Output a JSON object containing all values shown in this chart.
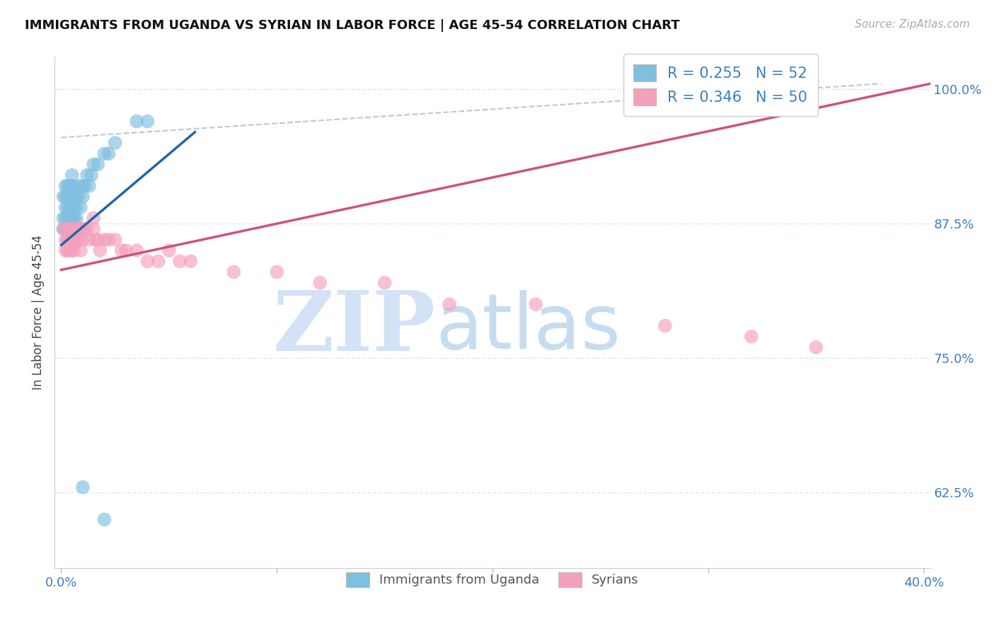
{
  "title": "IMMIGRANTS FROM UGANDA VS SYRIAN IN LABOR FORCE | AGE 45-54 CORRELATION CHART",
  "source": "Source: ZipAtlas.com",
  "ylabel": "In Labor Force | Age 45-54",
  "xlim": [
    -0.003,
    0.403
  ],
  "ylim": [
    0.555,
    1.03
  ],
  "xtick_positions": [
    0.0,
    0.1,
    0.2,
    0.3,
    0.4
  ],
  "xticklabels": [
    "0.0%",
    "",
    "",
    "",
    "40.0%"
  ],
  "ytick_positions": [
    0.625,
    0.75,
    0.875,
    1.0
  ],
  "ytick_labels": [
    "62.5%",
    "75.0%",
    "87.5%",
    "100.0%"
  ],
  "legend_text_1": "R = 0.255   N = 52",
  "legend_text_2": "R = 0.346   N = 50",
  "legend_label_uganda": "Immigrants from Uganda",
  "legend_label_syrian": "Syrians",
  "uganda_color": "#7fbfdf",
  "syrian_color": "#f4a0bc",
  "uganda_line_color": "#2166ac",
  "syrian_line_color": "#d05080",
  "text_color_blue": "#3a7fc1",
  "grid_color": "#d8eaf8",
  "uganda_x": [
    0.001,
    0.001,
    0.001,
    0.002,
    0.002,
    0.002,
    0.002,
    0.002,
    0.003,
    0.003,
    0.003,
    0.003,
    0.003,
    0.003,
    0.004,
    0.004,
    0.004,
    0.004,
    0.004,
    0.004,
    0.005,
    0.005,
    0.005,
    0.005,
    0.005,
    0.005,
    0.005,
    0.006,
    0.006,
    0.006,
    0.006,
    0.007,
    0.007,
    0.007,
    0.008,
    0.008,
    0.009,
    0.01,
    0.01,
    0.011,
    0.012,
    0.013,
    0.014,
    0.015,
    0.017,
    0.02,
    0.022,
    0.025,
    0.035,
    0.04,
    0.01,
    0.02
  ],
  "uganda_y": [
    0.9,
    0.88,
    0.87,
    0.91,
    0.9,
    0.89,
    0.88,
    0.87,
    0.91,
    0.9,
    0.89,
    0.88,
    0.87,
    0.86,
    0.91,
    0.9,
    0.89,
    0.88,
    0.87,
    0.86,
    0.92,
    0.91,
    0.9,
    0.89,
    0.88,
    0.87,
    0.86,
    0.9,
    0.89,
    0.88,
    0.87,
    0.9,
    0.89,
    0.88,
    0.91,
    0.9,
    0.89,
    0.91,
    0.9,
    0.91,
    0.92,
    0.91,
    0.92,
    0.93,
    0.93,
    0.94,
    0.94,
    0.95,
    0.97,
    0.97,
    0.63,
    0.6
  ],
  "syrian_x": [
    0.001,
    0.002,
    0.002,
    0.003,
    0.003,
    0.003,
    0.004,
    0.004,
    0.005,
    0.005,
    0.005,
    0.006,
    0.006,
    0.006,
    0.007,
    0.007,
    0.008,
    0.008,
    0.009,
    0.009,
    0.01,
    0.01,
    0.011,
    0.012,
    0.013,
    0.015,
    0.015,
    0.016,
    0.017,
    0.018,
    0.02,
    0.022,
    0.025,
    0.028,
    0.03,
    0.035,
    0.04,
    0.045,
    0.05,
    0.055,
    0.06,
    0.08,
    0.1,
    0.12,
    0.15,
    0.18,
    0.22,
    0.28,
    0.32,
    0.35
  ],
  "syrian_y": [
    0.87,
    0.86,
    0.85,
    0.87,
    0.86,
    0.85,
    0.86,
    0.85,
    0.87,
    0.86,
    0.85,
    0.87,
    0.86,
    0.85,
    0.87,
    0.86,
    0.87,
    0.86,
    0.87,
    0.85,
    0.87,
    0.86,
    0.87,
    0.87,
    0.86,
    0.88,
    0.87,
    0.86,
    0.86,
    0.85,
    0.86,
    0.86,
    0.86,
    0.85,
    0.85,
    0.85,
    0.84,
    0.84,
    0.85,
    0.84,
    0.84,
    0.83,
    0.83,
    0.82,
    0.82,
    0.8,
    0.8,
    0.78,
    0.77,
    0.76
  ],
  "uganda_line_x": [
    0.0,
    0.062
  ],
  "uganda_line_y": [
    0.855,
    0.96
  ],
  "syrian_line_x": [
    0.0,
    0.403
  ],
  "syrian_line_y": [
    0.832,
    1.005
  ],
  "dash_line_x": [
    0.0,
    0.38
  ],
  "dash_line_y": [
    0.955,
    1.005
  ]
}
